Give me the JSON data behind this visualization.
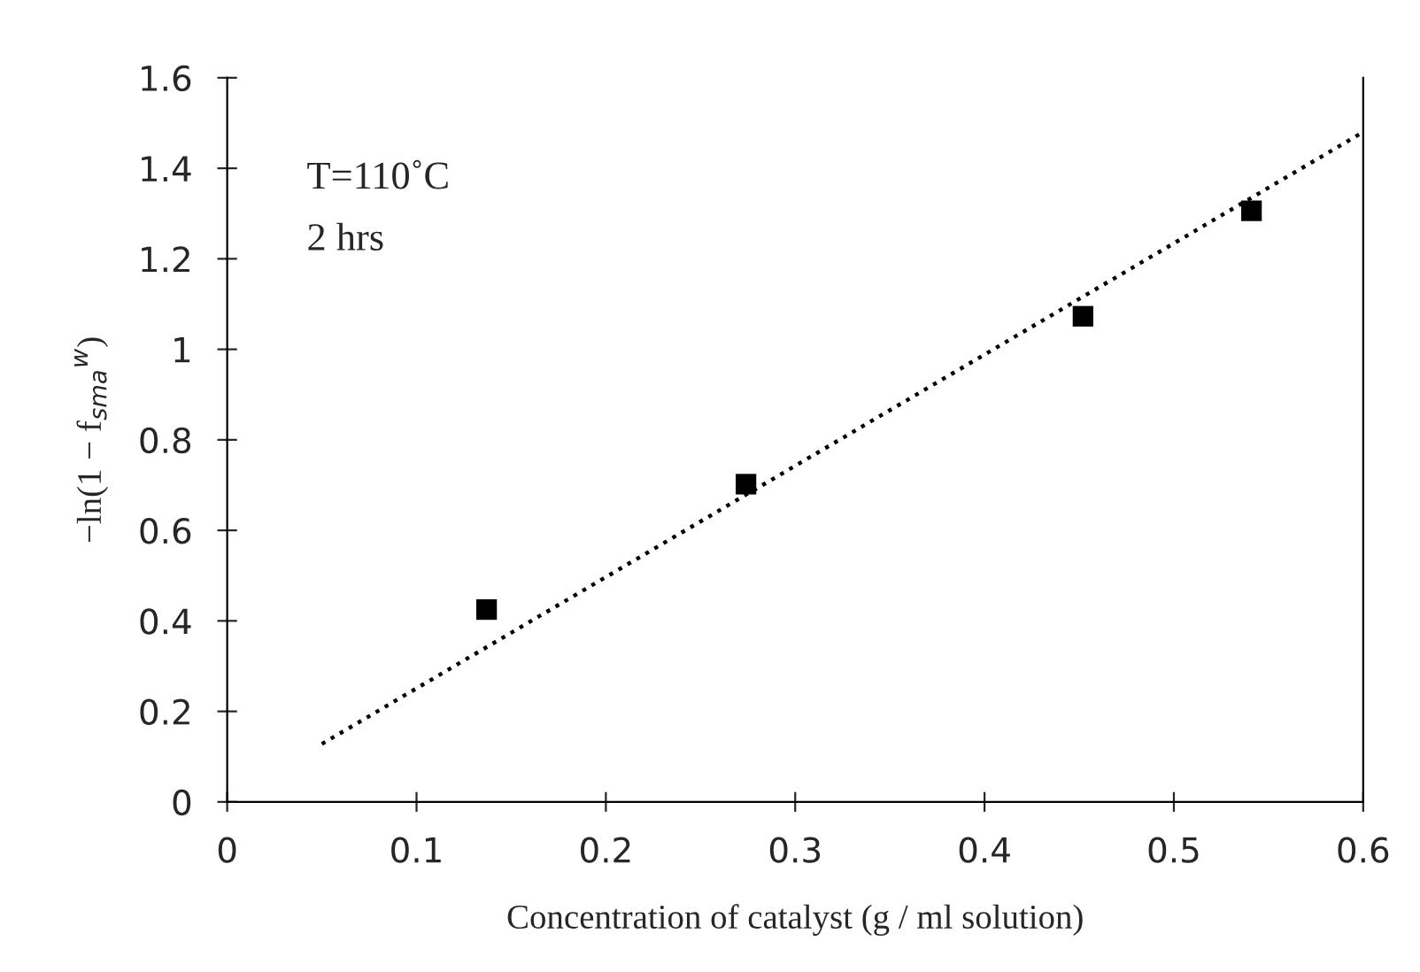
{
  "chart_data": {
    "type": "scatter",
    "xlabel": "Concentration of catalyst (g / ml solution)",
    "ylabel": "−ln(1 − f$_{sma}$$^{w}$)",
    "annotations": [
      "T=110˚C",
      "2 hrs"
    ],
    "xlim": [
      0,
      0.6
    ],
    "xticks": [
      0,
      0.1,
      0.2,
      0.3,
      0.4,
      0.5,
      0.6
    ],
    "ylim": [
      0,
      1.6
    ],
    "yticks": [
      0,
      0.2,
      0.4,
      0.6,
      0.8,
      {
        "value": 1.0,
        "label": "1"
      },
      1.2,
      1.4,
      1.6
    ],
    "grid": false,
    "legend": false,
    "series": [
      {
        "color": "#000000",
        "marker": "square",
        "x": [
          0.137,
          0.274,
          0.452,
          0.541
        ],
        "values": [
          0.425,
          0.702,
          1.073,
          1.306
        ]
      },
      {
        "type": "line",
        "color": "#000000",
        "line_style": "dotted",
        "marker": "none",
        "x": [
          0.05,
          0.6
        ],
        "values": [
          0.128,
          1.48
        ]
      }
    ]
  }
}
